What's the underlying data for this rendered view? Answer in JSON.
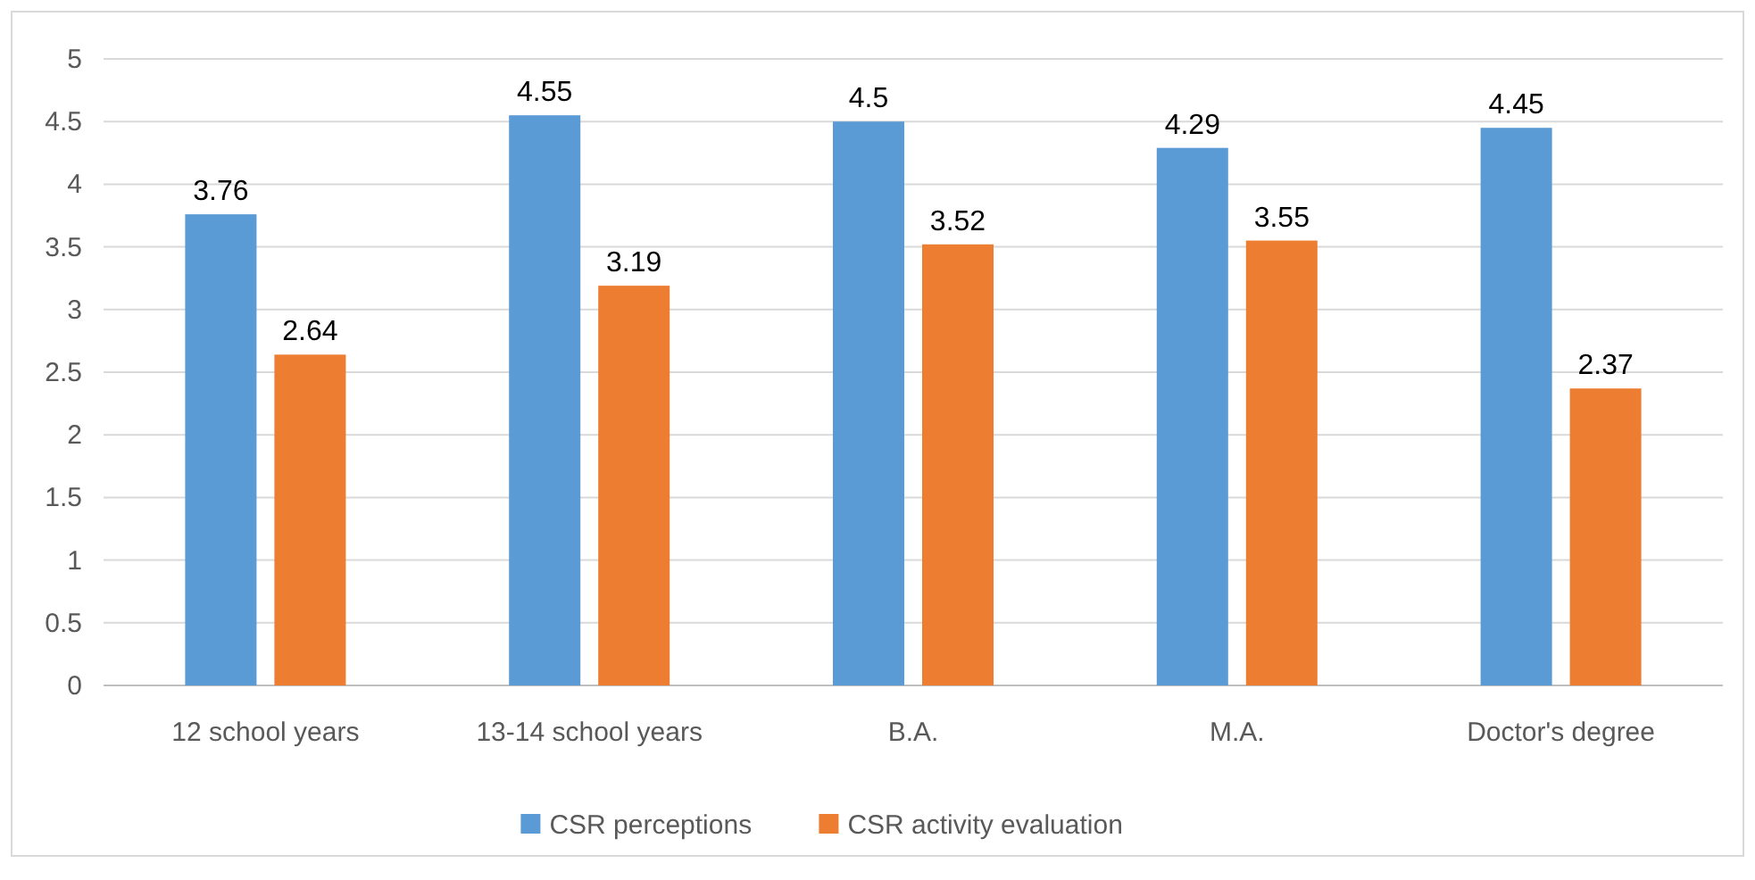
{
  "chart_data": {
    "type": "bar",
    "categories": [
      "12 school years",
      "13-14 school years",
      "B.A.",
      "M.A.",
      "Doctor's degree"
    ],
    "series": [
      {
        "name": "CSR perceptions",
        "color": "#5b9bd5",
        "values": [
          3.76,
          4.55,
          4.5,
          4.29,
          4.45
        ]
      },
      {
        "name": "CSR activity evaluation",
        "color": "#ed7d31",
        "values": [
          2.64,
          3.19,
          3.52,
          3.55,
          2.37
        ]
      }
    ],
    "ylim": [
      0,
      5
    ],
    "yticks": [
      0,
      0.5,
      1,
      1.5,
      2,
      2.5,
      3,
      3.5,
      4,
      4.5,
      5
    ],
    "grid": "y",
    "legend": "bottom",
    "data_labels": true
  }
}
